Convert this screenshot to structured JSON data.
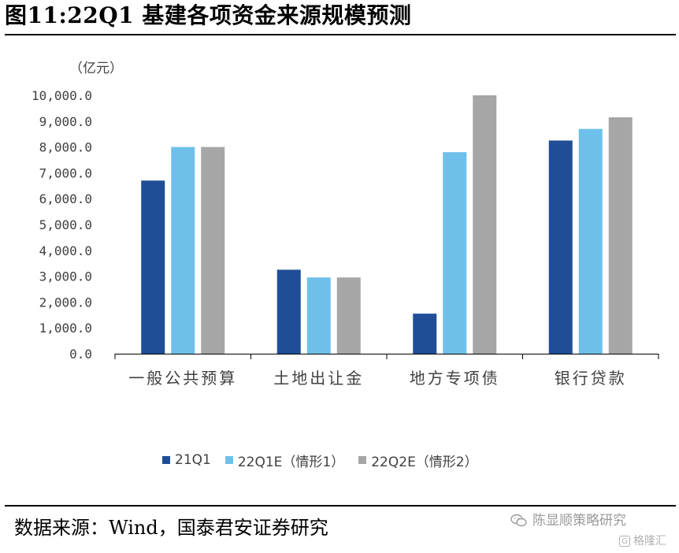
{
  "header": {
    "title": "图11:22Q1 基建各项资金来源规模预测"
  },
  "chart_data": {
    "type": "bar",
    "unit_label": "（亿元）",
    "categories": [
      "一般公共预算",
      "土地出让金",
      "地方专项债",
      "银行贷款"
    ],
    "series": [
      {
        "name": "21Q1",
        "color": "#1F4E96",
        "values": [
          6700,
          3250,
          1550,
          8250
        ]
      },
      {
        "name": "22Q1E（情形1）",
        "color": "#6EC0EB",
        "values": [
          8000,
          2950,
          7800,
          8700
        ]
      },
      {
        "name": "22Q2E（情形2）",
        "color": "#A6A6A6",
        "values": [
          8000,
          2950,
          10000,
          9150
        ]
      }
    ],
    "ylim": [
      0,
      10000
    ],
    "yticks": [
      "0.0",
      "1,000.0",
      "2,000.0",
      "3,000.0",
      "4,000.0",
      "5,000.0",
      "6,000.0",
      "7,000.0",
      "8,000.0",
      "9,000.0",
      "10,000.0"
    ],
    "grid": false,
    "legend_position": "bottom"
  },
  "footer": {
    "source": "数据来源：Wind，国泰君安证券研究",
    "watermark_1": "陈显顺策略研究",
    "watermark_1_icon": "wechat-icon",
    "watermark_2": "格隆汇",
    "watermark_2_icon": "gelonghui-logo-icon"
  }
}
